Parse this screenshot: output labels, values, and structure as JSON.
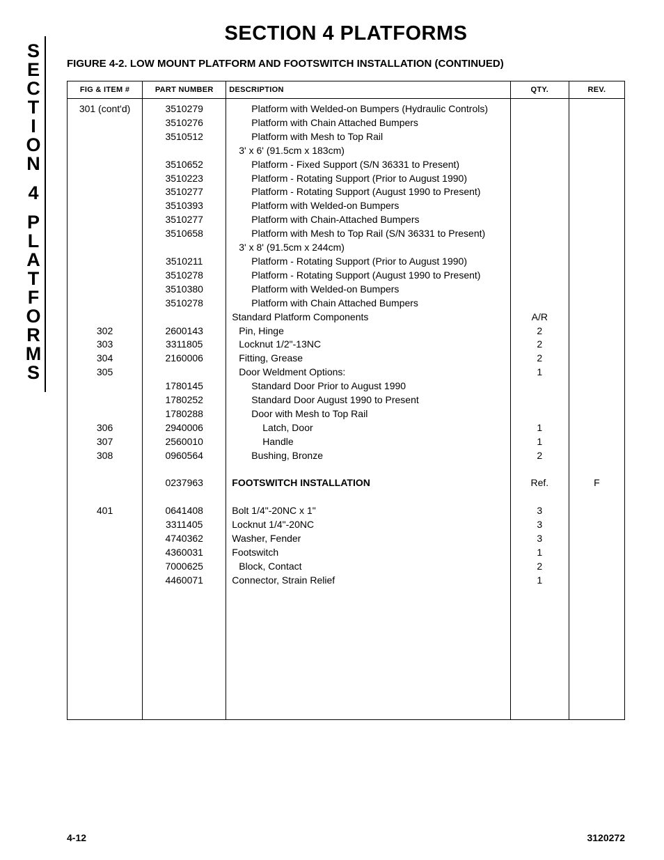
{
  "side_tab": {
    "word1": [
      "S",
      "E",
      "C",
      "T",
      "I",
      "O",
      "N"
    ],
    "word2": [
      "4"
    ],
    "word3": [
      "P",
      "L",
      "A",
      "T",
      "F",
      "O",
      "R",
      "M",
      "S"
    ]
  },
  "section_title": "SECTION 4  PLATFORMS",
  "figure_title": "FIGURE 4-2.  LOW MOUNT PLATFORM AND FOOTSWITCH INSTALLATION (CONTINUED)",
  "columns": {
    "fig": "FIG & ITEM #",
    "pn": "PART NUMBER",
    "desc": "DESCRIPTION",
    "qty": "QTY.",
    "rev": "REV."
  },
  "rows": [
    {
      "fig": "301 (cont'd)",
      "pn": "3510279",
      "desc": "Platform with Welded-on Bumpers (Hydraulic Controls)",
      "qty": "",
      "rev": "",
      "indent": 2
    },
    {
      "fig": "",
      "pn": "3510276",
      "desc": "Platform with Chain Attached Bumpers",
      "qty": "",
      "rev": "",
      "indent": 2
    },
    {
      "fig": "",
      "pn": "3510512",
      "desc": "Platform with Mesh to Top Rail",
      "qty": "",
      "rev": "",
      "indent": 2
    },
    {
      "fig": "",
      "pn": "",
      "desc": "3' x 6' (91.5cm x 183cm)",
      "qty": "",
      "rev": "",
      "indent": 1
    },
    {
      "fig": "",
      "pn": "3510652",
      "desc": "Platform - Fixed Support (S/N 36331 to Present)",
      "qty": "",
      "rev": "",
      "indent": 2
    },
    {
      "fig": "",
      "pn": "3510223",
      "desc": "Platform - Rotating Support (Prior to August 1990)",
      "qty": "",
      "rev": "",
      "indent": 2
    },
    {
      "fig": "",
      "pn": "3510277",
      "desc": "Platform - Rotating Support (August 1990 to Present)",
      "qty": "",
      "rev": "",
      "indent": 2
    },
    {
      "fig": "",
      "pn": "3510393",
      "desc": "Platform with Welded-on Bumpers",
      "qty": "",
      "rev": "",
      "indent": 2
    },
    {
      "fig": "",
      "pn": "3510277",
      "desc": "Platform with Chain-Attached Bumpers",
      "qty": "",
      "rev": "",
      "indent": 2
    },
    {
      "fig": "",
      "pn": "3510658",
      "desc": "Platform with Mesh to Top Rail (S/N 36331 to Present)",
      "qty": "",
      "rev": "",
      "indent": 2
    },
    {
      "fig": "",
      "pn": "",
      "desc": "3' x 8' (91.5cm x 244cm)",
      "qty": "",
      "rev": "",
      "indent": 1
    },
    {
      "fig": "",
      "pn": "3510211",
      "desc": "Platform - Rotating Support (Prior to August 1990)",
      "qty": "",
      "rev": "",
      "indent": 2
    },
    {
      "fig": "",
      "pn": "3510278",
      "desc": "Platform - Rotating Support (August 1990 to Present)",
      "qty": "",
      "rev": "",
      "indent": 2
    },
    {
      "fig": "",
      "pn": "3510380",
      "desc": "Platform with Welded-on Bumpers",
      "qty": "",
      "rev": "",
      "indent": 2
    },
    {
      "fig": "",
      "pn": "3510278",
      "desc": "Platform with Chain Attached Bumpers",
      "qty": "",
      "rev": "",
      "indent": 2
    },
    {
      "fig": "",
      "pn": "",
      "desc": "Standard Platform Components",
      "qty": "A/R",
      "rev": "",
      "indent": 0
    },
    {
      "fig": "302",
      "pn": "2600143",
      "desc": "Pin, Hinge",
      "qty": "2",
      "rev": "",
      "indent": 1
    },
    {
      "fig": "303",
      "pn": "3311805",
      "desc": "Locknut 1/2\"-13NC",
      "qty": "2",
      "rev": "",
      "indent": 1
    },
    {
      "fig": "304",
      "pn": "2160006",
      "desc": "Fitting, Grease",
      "qty": "2",
      "rev": "",
      "indent": 1
    },
    {
      "fig": "305",
      "pn": "",
      "desc": "Door Weldment Options:",
      "qty": "1",
      "rev": "",
      "indent": 1
    },
    {
      "fig": "",
      "pn": "1780145",
      "desc": "Standard Door Prior to August 1990",
      "qty": "",
      "rev": "",
      "indent": 2
    },
    {
      "fig": "",
      "pn": "1780252",
      "desc": "Standard Door August 1990 to Present",
      "qty": "",
      "rev": "",
      "indent": 2
    },
    {
      "fig": "",
      "pn": "1780288",
      "desc": "Door with Mesh to Top Rail",
      "qty": "",
      "rev": "",
      "indent": 2
    },
    {
      "fig": "306",
      "pn": "2940006",
      "desc": "Latch, Door",
      "qty": "1",
      "rev": "",
      "indent": 3
    },
    {
      "fig": "307",
      "pn": "2560010",
      "desc": "Handle",
      "qty": "1",
      "rev": "",
      "indent": 3
    },
    {
      "fig": "308",
      "pn": "0960564",
      "desc": "Bushing, Bronze",
      "qty": "2",
      "rev": "",
      "indent": 2
    },
    {
      "fig": "",
      "pn": "",
      "desc": "",
      "qty": "",
      "rev": "",
      "indent": 0,
      "spacer": true
    },
    {
      "fig": "",
      "pn": "0237963",
      "desc": "FOOTSWITCH INSTALLATION",
      "qty": "Ref.",
      "rev": "F",
      "indent": 0,
      "bold": true
    },
    {
      "fig": "",
      "pn": "",
      "desc": "",
      "qty": "",
      "rev": "",
      "indent": 0,
      "spacer": true
    },
    {
      "fig": "401",
      "pn": "0641408",
      "desc": "Bolt 1/4\"-20NC x 1\"",
      "qty": "3",
      "rev": "",
      "indent": 0
    },
    {
      "fig": "",
      "pn": "3311405",
      "desc": "Locknut 1/4\"-20NC",
      "qty": "3",
      "rev": "",
      "indent": 0
    },
    {
      "fig": "",
      "pn": "4740362",
      "desc": "Washer, Fender",
      "qty": "3",
      "rev": "",
      "indent": 0
    },
    {
      "fig": "",
      "pn": "4360031",
      "desc": "Footswitch",
      "qty": "1",
      "rev": "",
      "indent": 0
    },
    {
      "fig": "",
      "pn": "7000625",
      "desc": "Block, Contact",
      "qty": "2",
      "rev": "",
      "indent": 1
    },
    {
      "fig": "",
      "pn": "4460071",
      "desc": "Connector, Strain Relief",
      "qty": "1",
      "rev": "",
      "indent": 0
    }
  ],
  "footer": {
    "page": "4-12",
    "doc": "3120272"
  }
}
